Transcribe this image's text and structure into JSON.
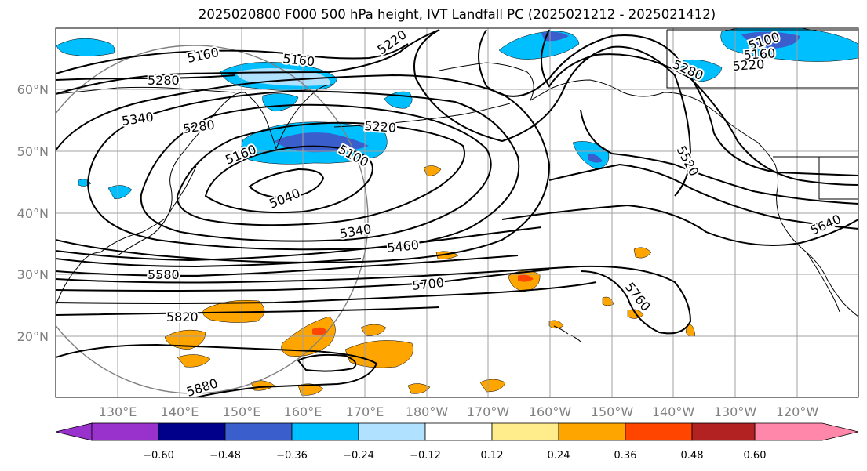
{
  "title": "2025020800 F000 500 hPa height, IVT Landfall PC (2025021212 - 2025021412)",
  "map": {
    "lat_labels": [
      "60°N",
      "50°N",
      "40°N",
      "30°N",
      "20°N"
    ],
    "lon_labels": [
      "130°E",
      "140°E",
      "150°E",
      "160°E",
      "170°E",
      "180°W",
      "170°W",
      "160°W",
      "150°W",
      "140°W",
      "130°W",
      "120°W"
    ],
    "contour_labels": [
      "5160",
      "5160",
      "5220",
      "5280",
      "5340",
      "5280",
      "5220",
      "5160",
      "5100",
      "5040",
      "5340",
      "5460",
      "5580",
      "5700",
      "5760",
      "5820",
      "5880",
      "5520",
      "5640",
      "5100",
      "5160",
      "5220",
      "5280"
    ],
    "colors": {
      "contour": "#000000",
      "grid": "#a0a0a0",
      "coast": "#000000",
      "circle": "#808080"
    }
  },
  "colorbar": {
    "ticks": [
      "−0.60",
      "−0.48",
      "−0.36",
      "−0.24",
      "−0.12",
      "0.12",
      "0.24",
      "0.36",
      "0.48",
      "0.60"
    ],
    "colors": [
      "#9932cc",
      "#00008b",
      "#3a5fcd",
      "#00bfff",
      "#b0e2ff",
      "#ffffff",
      "#ffec8b",
      "#ffa500",
      "#ff4500",
      "#b22222",
      "#ff88aa"
    ]
  }
}
